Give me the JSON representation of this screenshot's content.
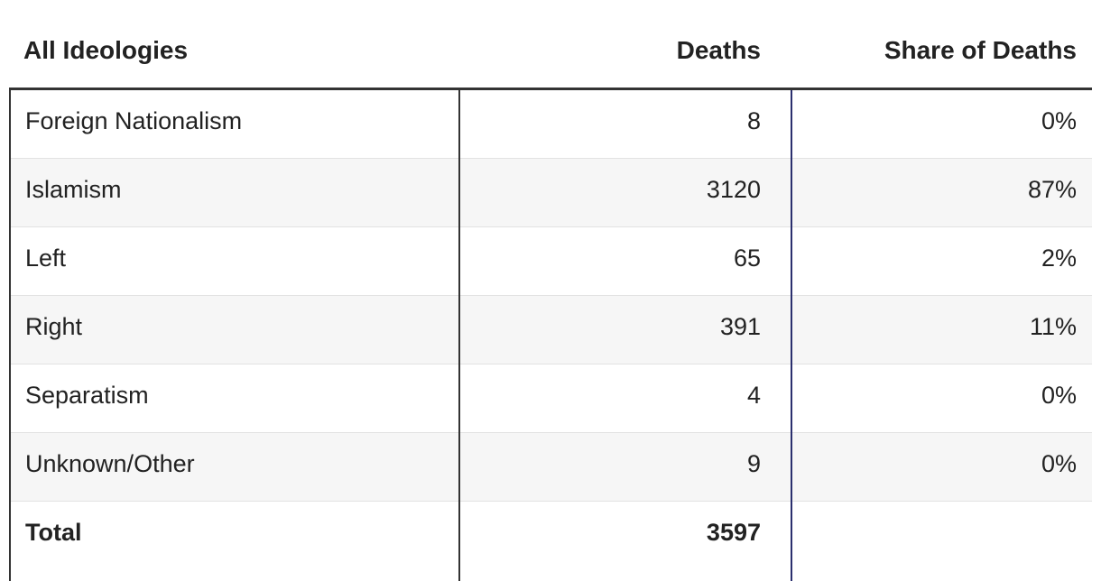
{
  "chart_data": {
    "type": "table",
    "columns": [
      "All Ideologies",
      "Deaths",
      "Share of Deaths"
    ],
    "rows": [
      {
        "ideology": "Foreign Nationalism",
        "deaths": "8",
        "share": "0%"
      },
      {
        "ideology": "Islamism",
        "deaths": "3120",
        "share": "87%"
      },
      {
        "ideology": "Left",
        "deaths": "65",
        "share": "2%"
      },
      {
        "ideology": "Right",
        "deaths": "391",
        "share": "11%"
      },
      {
        "ideology": "Separatism",
        "deaths": "4",
        "share": "0%"
      },
      {
        "ideology": "Unknown/Other",
        "deaths": "9",
        "share": "0%"
      }
    ],
    "total": {
      "label": "Total",
      "deaths": "3597",
      "share": ""
    },
    "colors": {
      "divider": "#333333",
      "accent_divider": "#2a2f6e",
      "alt_row": "#f6f6f6"
    }
  }
}
